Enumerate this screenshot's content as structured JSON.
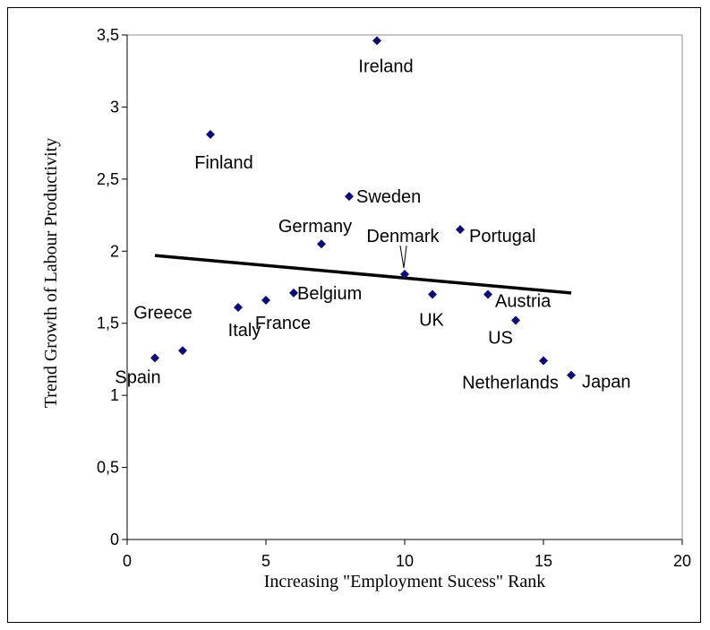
{
  "chart_data": {
    "type": "scatter",
    "title": "",
    "xlabel": "Increasing \"Employment Sucess\" Rank",
    "ylabel": "Trend Growth of Labour Productivity",
    "xlim": [
      0,
      20
    ],
    "ylim": [
      0,
      3.5
    ],
    "x_ticks": [
      "0",
      "5",
      "10",
      "15",
      "20"
    ],
    "y_ticks": [
      "0",
      "0,5",
      "1",
      "1,5",
      "2",
      "2,5",
      "3",
      "3,5"
    ],
    "grid": false,
    "legend": "none",
    "marker_color": "#0b0b80",
    "trendline_color": "#000000",
    "points": [
      {
        "label": "Spain",
        "x": 1,
        "y": 1.26
      },
      {
        "label": "Greece",
        "x": 2,
        "y": 1.31
      },
      {
        "label": "Finland",
        "x": 3,
        "y": 2.81
      },
      {
        "label": "Italy",
        "x": 4,
        "y": 1.61
      },
      {
        "label": "France",
        "x": 5,
        "y": 1.66
      },
      {
        "label": "Belgium",
        "x": 6,
        "y": 1.71
      },
      {
        "label": "Germany",
        "x": 7,
        "y": 2.05
      },
      {
        "label": "Sweden",
        "x": 8,
        "y": 2.38
      },
      {
        "label": "Ireland",
        "x": 9,
        "y": 3.46
      },
      {
        "label": "Denmark",
        "x": 10,
        "y": 1.84
      },
      {
        "label": "UK",
        "x": 11,
        "y": 1.7
      },
      {
        "label": "Portugal",
        "x": 12,
        "y": 2.15
      },
      {
        "label": "Austria",
        "x": 13,
        "y": 1.7
      },
      {
        "label": "US",
        "x": 14,
        "y": 1.52
      },
      {
        "label": "Netherlands",
        "x": 15,
        "y": 1.24
      },
      {
        "label": "Japan",
        "x": 16,
        "y": 1.14
      }
    ],
    "trendline": {
      "x": [
        1,
        16
      ],
      "y": [
        1.97,
        1.71
      ]
    }
  }
}
